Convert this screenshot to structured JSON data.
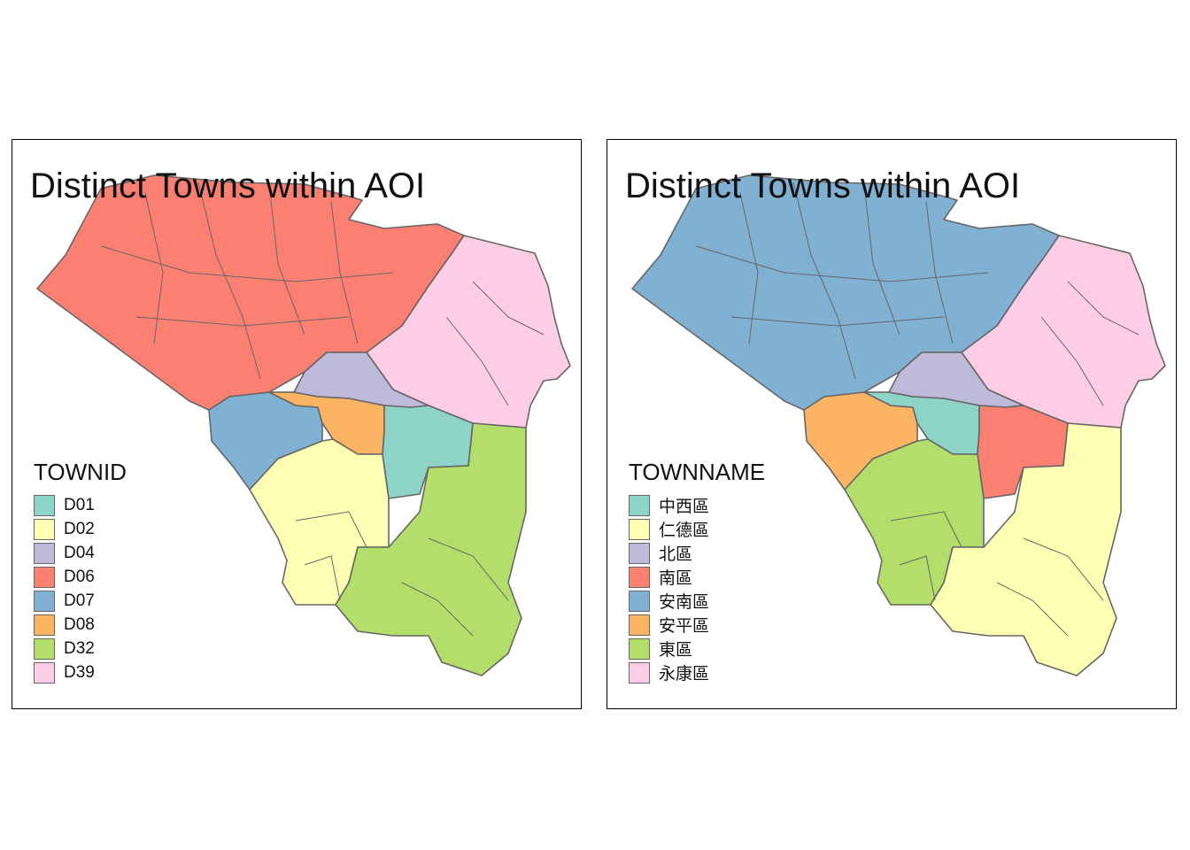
{
  "panels": [
    {
      "title": "Distinct Towns within AOI",
      "legend_title": "TOWNID",
      "legend": [
        {
          "label": "D01",
          "color": "#8DD3C7"
        },
        {
          "label": "D02",
          "color": "#FFFFB3"
        },
        {
          "label": "D04",
          "color": "#BEBADA"
        },
        {
          "label": "D06",
          "color": "#FB8072"
        },
        {
          "label": "D07",
          "color": "#80B1D3"
        },
        {
          "label": "D08",
          "color": "#FDB462"
        },
        {
          "label": "D32",
          "color": "#B3DE69"
        },
        {
          "label": "D39",
          "color": "#FCCDE5"
        }
      ]
    },
    {
      "title": "Distinct Towns within AOI",
      "legend_title": "TOWNNAME",
      "legend": [
        {
          "label": "中西區",
          "color": "#8DD3C7"
        },
        {
          "label": "仁德區",
          "color": "#FFFFB3"
        },
        {
          "label": "北區",
          "color": "#BEBADA"
        },
        {
          "label": "南區",
          "color": "#FB8072"
        },
        {
          "label": "安南區",
          "color": "#80B1D3"
        },
        {
          "label": "安平區",
          "color": "#FDB462"
        },
        {
          "label": "東區",
          "color": "#B3DE69"
        },
        {
          "label": "永康區",
          "color": "#FCCDE5"
        }
      ]
    }
  ],
  "map_regions": {
    "left": [
      "D06",
      "D39",
      "D04",
      "D07",
      "D08",
      "D01",
      "D02",
      "D32"
    ],
    "right": [
      "安南區",
      "永康區",
      "北區",
      "安平區",
      "中西區",
      "南區",
      "東區",
      "仁德區"
    ]
  }
}
